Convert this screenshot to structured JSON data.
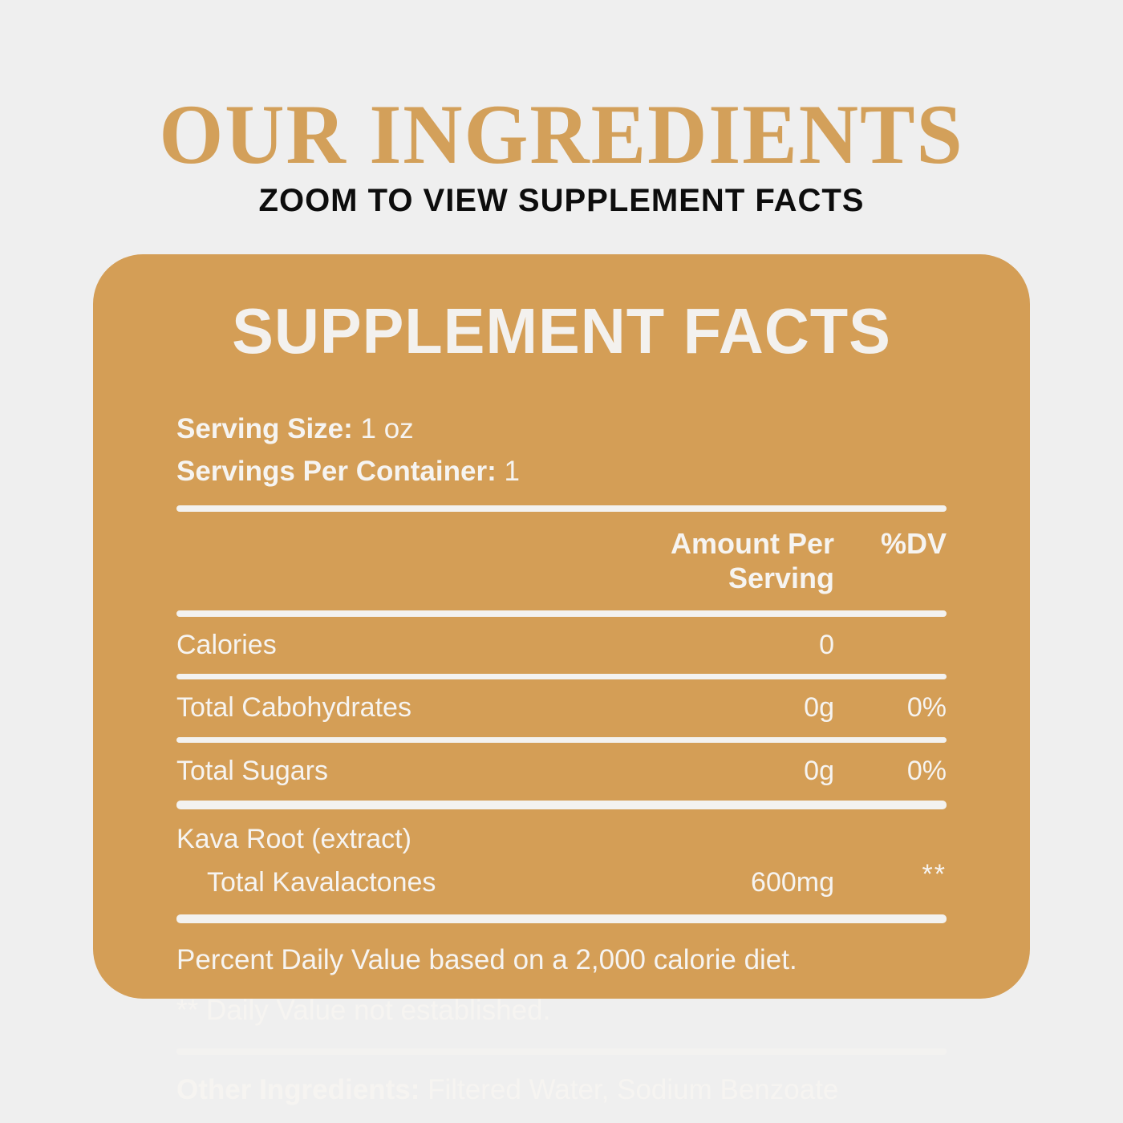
{
  "header": {
    "title": "OUR INGREDIENTS",
    "subtitle": "ZOOM TO VIEW SUPPLEMENT FACTS"
  },
  "panel": {
    "heading": "SUPPLEMENT FACTS",
    "serving_size_label": "Serving Size:",
    "serving_size_value": "1 oz",
    "servings_per_container_label": "Servings Per Container:",
    "servings_per_container_value": "1",
    "columns": {
      "amount": "Amount Per Serving",
      "dv": "%DV"
    },
    "rows": [
      {
        "name": "Calories",
        "amount": "0",
        "dv": ""
      },
      {
        "name": "Total Cabohydrates",
        "amount": "0g",
        "dv": "0%"
      },
      {
        "name": "Total Sugars",
        "amount": "0g",
        "dv": "0%"
      }
    ],
    "kava": {
      "group": "Kava Root (extract)",
      "sub_name": "Total Kavalactones",
      "amount": "600mg",
      "dv": "**"
    },
    "footnote1": "Percent Daily Value based on a 2,000 calorie diet.",
    "footnote2": "** Daily Value not established.",
    "other_ingredients_label": "Other Ingredients:",
    "other_ingredients_value": "Filtered Water, Sodium Benzoate"
  },
  "colors": {
    "page_background": "#efefef",
    "card_background": "#d49e56",
    "title_accent": "#d3a05a",
    "subtitle_text": "#0d0d0d",
    "card_text": "#f6f4f1",
    "divider": "#f3f2f0"
  }
}
